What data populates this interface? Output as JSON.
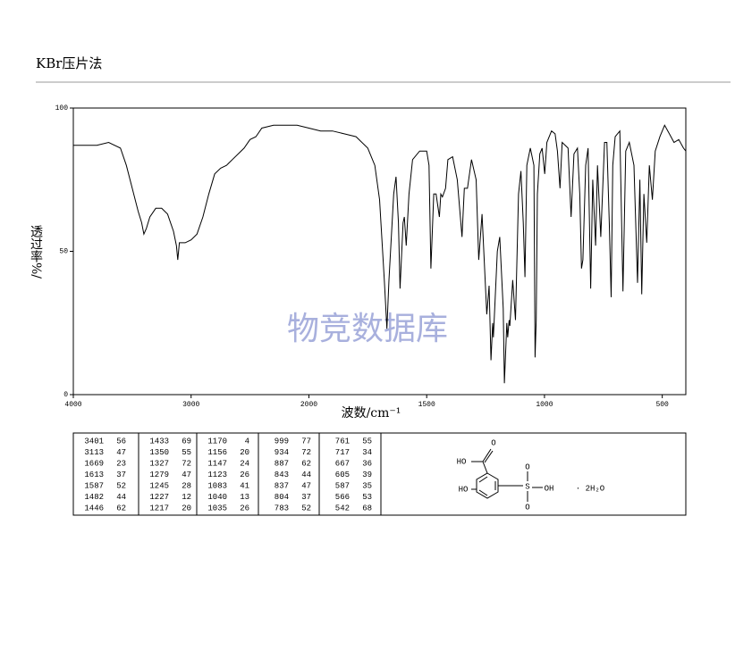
{
  "header": {
    "title": "KBr压片法"
  },
  "watermark": "物竞数据库",
  "chart_data": {
    "type": "line",
    "xlabel": "波数/cm⁻¹",
    "ylabel": "透过率%/",
    "xlim": [
      4000,
      400
    ],
    "ylim": [
      0,
      100
    ],
    "xticks": [
      4000,
      3000,
      2000,
      1500,
      1000,
      500
    ],
    "yticks": [
      0,
      50,
      100
    ],
    "color": "#000000",
    "x": [
      4000,
      3900,
      3800,
      3700,
      3600,
      3550,
      3500,
      3450,
      3420,
      3401,
      3380,
      3350,
      3300,
      3250,
      3200,
      3150,
      3125,
      3113,
      3100,
      3050,
      3000,
      2950,
      2900,
      2850,
      2800,
      2750,
      2700,
      2650,
      2600,
      2550,
      2500,
      2450,
      2400,
      2300,
      2200,
      2100,
      2000,
      1950,
      1900,
      1850,
      1800,
      1750,
      1720,
      1700,
      1680,
      1669,
      1660,
      1640,
      1630,
      1620,
      1613,
      1600,
      1595,
      1587,
      1575,
      1560,
      1530,
      1500,
      1490,
      1482,
      1470,
      1460,
      1446,
      1440,
      1433,
      1420,
      1410,
      1390,
      1370,
      1350,
      1340,
      1327,
      1310,
      1290,
      1279,
      1265,
      1245,
      1235,
      1227,
      1220,
      1217,
      1200,
      1190,
      1175,
      1170,
      1160,
      1156,
      1150,
      1147,
      1135,
      1123,
      1110,
      1100,
      1090,
      1083,
      1075,
      1060,
      1045,
      1040,
      1035,
      1030,
      1020,
      1010,
      999,
      990,
      970,
      955,
      945,
      934,
      925,
      900,
      887,
      875,
      860,
      850,
      843,
      837,
      825,
      815,
      804,
      795,
      783,
      775,
      761,
      745,
      735,
      725,
      717,
      710,
      700,
      680,
      667,
      655,
      640,
      620,
      605,
      595,
      587,
      578,
      566,
      555,
      542,
      530,
      510,
      490,
      470,
      450,
      430,
      410,
      400
    ],
    "values": [
      87,
      87,
      87,
      88,
      86,
      80,
      72,
      64,
      60,
      56,
      58,
      62,
      65,
      65,
      63,
      57,
      52,
      47,
      53,
      53,
      54,
      56,
      62,
      70,
      77,
      79,
      80,
      82,
      84,
      86,
      89,
      90,
      93,
      94,
      94,
      94,
      93,
      92,
      92,
      91,
      90,
      86,
      80,
      68,
      40,
      23,
      40,
      70,
      76,
      60,
      37,
      60,
      62,
      52,
      70,
      82,
      85,
      85,
      80,
      44,
      70,
      70,
      62,
      70,
      69,
      72,
      82,
      83,
      75,
      55,
      72,
      72,
      82,
      75,
      47,
      63,
      28,
      38,
      12,
      25,
      20,
      50,
      55,
      30,
      4,
      25,
      20,
      26,
      24,
      40,
      26,
      70,
      78,
      60,
      41,
      80,
      86,
      80,
      13,
      26,
      70,
      84,
      86,
      77,
      88,
      92,
      91,
      85,
      72,
      88,
      86,
      62,
      84,
      86,
      70,
      44,
      47,
      80,
      86,
      37,
      75,
      52,
      80,
      55,
      88,
      88,
      60,
      34,
      80,
      90,
      92,
      36,
      85,
      88,
      80,
      39,
      75,
      35,
      70,
      53,
      80,
      68,
      85,
      90,
      94,
      91,
      88,
      89,
      86,
      85
    ]
  },
  "peak_table": {
    "rows": [
      [
        "3401",
        "56",
        "1433",
        "69",
        "1170",
        "4",
        "999",
        "77",
        "761",
        "55"
      ],
      [
        "3113",
        "47",
        "1350",
        "55",
        "1156",
        "20",
        "934",
        "72",
        "717",
        "34"
      ],
      [
        "1669",
        "23",
        "1327",
        "72",
        "1147",
        "24",
        "887",
        "62",
        "667",
        "36"
      ],
      [
        "1613",
        "37",
        "1279",
        "47",
        "1123",
        "26",
        "843",
        "44",
        "605",
        "39"
      ],
      [
        "1587",
        "52",
        "1245",
        "28",
        "1083",
        "41",
        "837",
        "47",
        "587",
        "35"
      ],
      [
        "1482",
        "44",
        "1227",
        "12",
        "1040",
        "13",
        "804",
        "37",
        "566",
        "53"
      ],
      [
        "1446",
        "62",
        "1217",
        "20",
        "1035",
        "26",
        "783",
        "52",
        "542",
        "68"
      ]
    ]
  },
  "structure": {
    "labels": [
      "O",
      "HO",
      "HO",
      "S",
      "O",
      "O",
      "OH",
      "· 2H₂O"
    ]
  }
}
